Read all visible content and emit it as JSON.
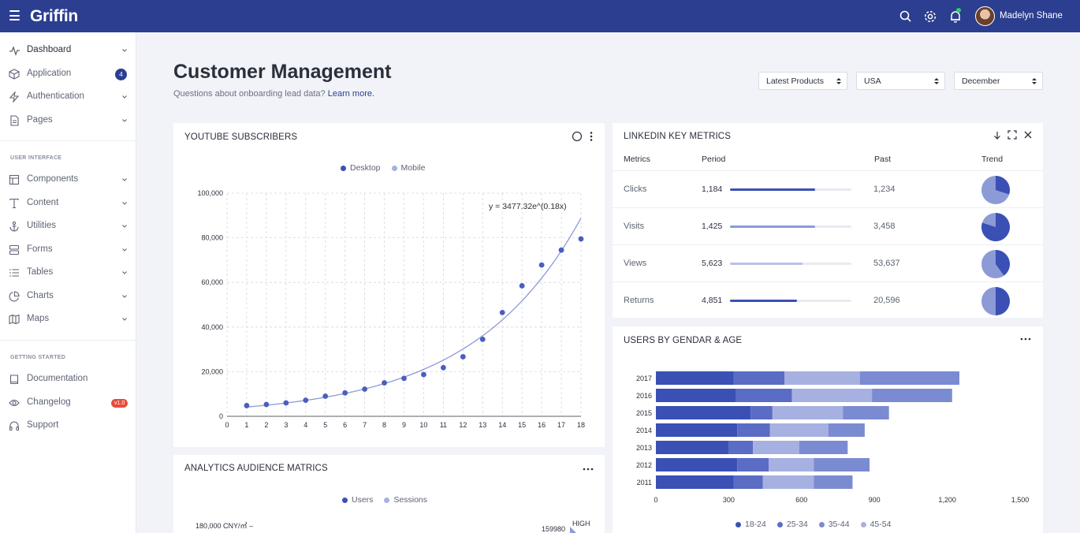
{
  "app": {
    "brand": "Griffin",
    "username": "Madelyn Shane"
  },
  "colors": {
    "header": "#2c3e8f",
    "primary": "#3a50b5",
    "secondary": "#8c9ad6",
    "light": "#a6b1e1",
    "badge_red": "#e74c3c"
  },
  "sidebar": {
    "items": [
      {
        "label": "Dashboard",
        "icon": "activity-icon",
        "chevron": true,
        "active": true
      },
      {
        "label": "Application",
        "icon": "box-icon",
        "badge": "4"
      },
      {
        "label": "Authentication",
        "icon": "zap-icon",
        "chevron": true
      },
      {
        "label": "Pages",
        "icon": "file-icon",
        "chevron": true
      }
    ],
    "section_ui": "USER INTERFACE",
    "ui_items": [
      {
        "label": "Components",
        "icon": "layout-icon"
      },
      {
        "label": "Content",
        "icon": "type-icon"
      },
      {
        "label": "Utilities",
        "icon": "anchor-icon"
      },
      {
        "label": "Forms",
        "icon": "server-icon"
      },
      {
        "label": "Tables",
        "icon": "list-icon"
      },
      {
        "label": "Charts",
        "icon": "pie-chart-icon"
      },
      {
        "label": "Maps",
        "icon": "map-icon"
      }
    ],
    "section_start": "GETTING STARTED",
    "start_items": [
      {
        "label": "Documentation",
        "icon": "book-icon"
      },
      {
        "label": "Changelog",
        "icon": "eye-icon",
        "badge": "v1.0"
      },
      {
        "label": "Support",
        "icon": "headphones-icon"
      }
    ]
  },
  "page": {
    "title": "Customer Management",
    "subtitle": "Questions about onboarding lead data?",
    "subtitle_link": "Learn more.",
    "filters": [
      "Latest Products",
      "USA",
      "December"
    ]
  },
  "youtube": {
    "title": "YOUTUBE SUBSCRIBERS",
    "legend": [
      "Desktop",
      "Mobile"
    ],
    "equation": "y = 3477.32e^(0.18x)"
  },
  "linkedin": {
    "title": "LINKEDIN KEY METRICS",
    "headers": [
      "Metrics",
      "Period",
      "Past",
      "Trend"
    ],
    "rows": [
      {
        "metric": "Clicks",
        "period": "1,184",
        "progress": 0.7,
        "past": "1,234",
        "trend": 0.3
      },
      {
        "metric": "Visits",
        "period": "1,425",
        "progress": 0.7,
        "past": "3,458",
        "trend": 0.8
      },
      {
        "metric": "Views",
        "period": "5,623",
        "progress": 0.6,
        "past": "53,637",
        "trend": 0.4
      },
      {
        "metric": "Returns",
        "period": "4,851",
        "progress": 0.55,
        "past": "20,596",
        "trend": 0.5
      }
    ]
  },
  "users_age": {
    "title": "USERS BY GENDAR & AGE",
    "legend": [
      "18-24",
      "25-34",
      "35-44",
      "45-54"
    ]
  },
  "analytics": {
    "title": "ANALYTICS AUDIENCE MATRICS",
    "legend": [
      "Users",
      "Sessions"
    ],
    "ylabel": "180,000 CNY/㎡ –",
    "value_label": "159980",
    "high_label": "HIGH"
  },
  "chart_data": [
    {
      "type": "scatter",
      "title": "YOUTUBE SUBSCRIBERS",
      "x": [
        1,
        2,
        3,
        4,
        5,
        6,
        7,
        8,
        9,
        10,
        11,
        12,
        13,
        14,
        15,
        16,
        17,
        18
      ],
      "series": [
        {
          "name": "Desktop",
          "values": [
            4800,
            5300,
            6000,
            7200,
            9000,
            10500,
            12200,
            15000,
            17000,
            18700,
            21800,
            26700,
            34500,
            46500,
            58500,
            67800,
            74500,
            79500
          ]
        }
      ],
      "fit": "y = 3477.32e^(0.18x)",
      "xlim": [
        0,
        18
      ],
      "ylim": [
        0,
        100000
      ],
      "xticks": [
        0,
        1,
        2,
        3,
        4,
        5,
        6,
        7,
        8,
        9,
        10,
        11,
        12,
        13,
        14,
        15,
        16,
        17,
        18
      ],
      "yticks": [
        "0",
        "20,000",
        "40,000",
        "60,000",
        "80,000",
        "100,000"
      ],
      "grid": true,
      "legend_position": "top"
    },
    {
      "type": "bar",
      "orientation": "horizontal-stacked",
      "title": "USERS BY GENDAR & AGE",
      "categories": [
        "2017",
        "2016",
        "2015",
        "2014",
        "2013",
        "2012",
        "2011"
      ],
      "series": [
        {
          "name": "18-24",
          "values": [
            320,
            330,
            390,
            335,
            300,
            335,
            320
          ]
        },
        {
          "name": "25-34",
          "values": [
            210,
            230,
            90,
            135,
            100,
            130,
            120
          ]
        },
        {
          "name": "35-44",
          "values": [
            310,
            330,
            290,
            240,
            190,
            185,
            210
          ]
        },
        {
          "name": "45-54",
          "values": [
            410,
            330,
            190,
            150,
            200,
            230,
            160
          ]
        }
      ],
      "xlim": [
        0,
        1500
      ],
      "xticks": [
        "0",
        "300",
        "600",
        "900",
        "1,200",
        "1,500"
      ],
      "legend_position": "bottom"
    }
  ]
}
